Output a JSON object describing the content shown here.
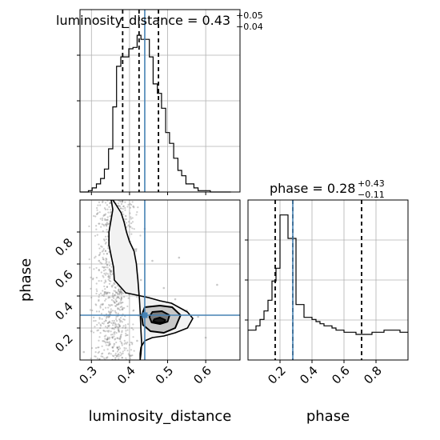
{
  "chart_data": {
    "type": "corner",
    "parameters": [
      "luminosity_distance",
      "phase"
    ],
    "ranges": {
      "luminosity_distance": [
        0.27,
        0.69
      ],
      "phase": [
        0.0,
        1.0
      ]
    },
    "truths": {
      "luminosity_distance": 0.44,
      "phase": 0.28
    },
    "grid": true,
    "panels": {
      "luminosity_distance_hist": {
        "title_prefix": "luminosity_distance = ",
        "median_text": "0.43",
        "plus_text": "+0.05",
        "minus_text": "−0.04",
        "quantiles": [
          0.382,
          0.425,
          0.476
        ],
        "bin_edges": [
          0.27,
          0.281,
          0.292,
          0.302,
          0.313,
          0.324,
          0.334,
          0.345,
          0.356,
          0.366,
          0.377,
          0.388,
          0.398,
          0.409,
          0.42,
          0.43,
          0.441,
          0.452,
          0.462,
          0.473,
          0.484,
          0.495,
          0.505,
          0.516,
          0.527,
          0.537,
          0.548,
          0.559,
          0.569,
          0.58,
          0.591,
          0.601,
          0.612,
          0.623,
          0.634,
          0.644,
          0.655,
          0.666
        ],
        "counts": [
          0,
          0,
          1,
          3,
          6,
          10,
          17,
          32,
          63,
          93,
          100,
          100,
          106,
          107,
          116,
          113,
          113,
          100,
          80,
          73,
          62,
          44,
          36,
          25,
          16,
          12,
          6,
          6,
          3,
          1,
          1,
          1,
          0,
          0,
          0,
          0,
          0
        ],
        "y_max": 135
      },
      "phase_hist": {
        "title_prefix": "phase = ",
        "median_text": "0.28",
        "plus_text": "+0.43",
        "minus_text": "−0.11",
        "quantiles": [
          0.17,
          0.28,
          0.71
        ],
        "bin_edges": [
          0.0,
          0.025,
          0.05,
          0.075,
          0.1,
          0.125,
          0.15,
          0.175,
          0.2,
          0.225,
          0.25,
          0.275,
          0.3,
          0.325,
          0.35,
          0.375,
          0.4,
          0.425,
          0.45,
          0.475,
          0.5,
          0.525,
          0.55,
          0.575,
          0.6,
          0.625,
          0.65,
          0.675,
          0.7,
          0.725,
          0.75,
          0.775,
          0.8,
          0.825,
          0.85,
          0.875,
          0.9,
          0.925,
          0.95,
          0.975,
          1.0
        ],
        "counts": [
          14,
          14,
          16,
          19,
          23,
          28,
          37,
          43,
          68,
          68,
          57,
          57,
          26,
          26,
          20,
          20,
          19,
          18,
          17,
          16,
          16,
          15,
          14,
          14,
          13,
          13,
          13,
          12,
          12,
          12,
          12,
          13,
          13,
          13,
          14,
          14,
          14,
          14,
          13,
          13
        ],
        "y_max": 75
      },
      "joint": {
        "density_scatter": [
          {
            "dist": 0.28,
            "phase": 0.05
          },
          {
            "dist": 0.3,
            "phase": 0.18
          },
          {
            "dist": 0.33,
            "phase": 0.35
          },
          {
            "dist": 0.35,
            "phase": 0.55
          },
          {
            "dist": 0.37,
            "phase": 0.72
          },
          {
            "dist": 0.39,
            "phase": 0.9
          },
          {
            "dist": 0.41,
            "phase": 0.96
          },
          {
            "dist": 0.44,
            "phase": 0.82
          },
          {
            "dist": 0.46,
            "phase": 0.62
          },
          {
            "dist": 0.49,
            "phase": 0.45
          },
          {
            "dist": 0.52,
            "phase": 0.38
          },
          {
            "dist": 0.55,
            "phase": 0.31
          },
          {
            "dist": 0.58,
            "phase": 0.27
          },
          {
            "dist": 0.6,
            "phase": 0.14
          },
          {
            "dist": 0.63,
            "phase": 0.47
          },
          {
            "dist": 0.53,
            "phase": 0.64
          },
          {
            "dist": 0.47,
            "phase": 0.22
          },
          {
            "dist": 0.42,
            "phase": 0.12
          },
          {
            "dist": 0.36,
            "phase": 0.1
          },
          {
            "dist": 0.4,
            "phase": 0.03
          },
          {
            "dist": 0.5,
            "phase": 0.3
          },
          {
            "dist": 0.56,
            "phase": 0.26
          },
          {
            "dist": 0.34,
            "phase": 0.85
          },
          {
            "dist": 0.38,
            "phase": 0.42
          },
          {
            "dist": 0.45,
            "phase": 0.34
          },
          {
            "dist": 0.48,
            "phase": 0.26
          },
          {
            "dist": 0.43,
            "phase": 0.5
          },
          {
            "dist": 0.32,
            "phase": 0.62
          },
          {
            "dist": 0.51,
            "phase": 0.19
          },
          {
            "dist": 0.4,
            "phase": 0.66
          }
        ],
        "contour_levels": [
          {
            "shade": "#f2f2f2",
            "path_x": [
              0.352,
              0.356,
              0.352,
              0.346,
              0.346,
              0.352,
              0.358,
              0.36,
              0.39,
              0.45,
              0.48,
              0.51,
              0.552,
              0.566,
              0.552,
              0.52,
              0.49,
              0.46,
              0.44,
              0.43,
              0.428,
              0.428,
              0.43,
              0.432,
              0.43,
              0.428,
              0.426,
              0.424,
              0.422,
              0.42,
              0.418,
              0.412,
              0.4,
              0.392,
              0.386,
              0.378,
              0.37,
              0.362,
              0.356,
              0.352,
              0.35,
              0.35,
              0.352
            ],
            "path_y": [
              1.0,
              0.94,
              0.88,
              0.8,
              0.72,
              0.65,
              0.58,
              0.5,
              0.42,
              0.39,
              0.37,
              0.355,
              0.3,
              0.26,
              0.2,
              0.17,
              0.15,
              0.14,
              0.12,
              0.08,
              0.04,
              0.0,
              0.04,
              0.1,
              0.18,
              0.3,
              0.38,
              0.44,
              0.5,
              0.55,
              0.6,
              0.68,
              0.74,
              0.8,
              0.86,
              0.92,
              0.95,
              0.98,
              1.0,
              1.0,
              1.0,
              1.0,
              1.0
            ]
          },
          {
            "shade": "#c8c8c8",
            "path_x": [
              0.44,
              0.48,
              0.512,
              0.534,
              0.52,
              0.49,
              0.455,
              0.435,
              0.432,
              0.44
            ],
            "path_y": [
              0.33,
              0.34,
              0.33,
              0.28,
              0.2,
              0.17,
              0.18,
              0.22,
              0.28,
              0.33
            ]
          },
          {
            "shade": "#7a7a7a",
            "path_x": [
              0.46,
              0.485,
              0.505,
              0.5,
              0.48,
              0.458,
              0.452,
              0.46
            ],
            "path_y": [
              0.3,
              0.305,
              0.28,
              0.24,
              0.225,
              0.235,
              0.27,
              0.3
            ]
          },
          {
            "shade": "#1a1a1a",
            "path_x": [
              0.465,
              0.48,
              0.494,
              0.49,
              0.475,
              0.462,
              0.465
            ],
            "path_y": [
              0.255,
              0.265,
              0.25,
              0.235,
              0.232,
              0.242,
              0.255
            ]
          }
        ]
      }
    },
    "ticks": {
      "luminosity_distance": [
        0.3,
        0.4,
        0.5,
        0.6
      ],
      "luminosity_distance_labels": [
        "0.3",
        "0.4",
        "0.5",
        "0.6"
      ],
      "phase": [
        0.2,
        0.4,
        0.6,
        0.8
      ],
      "phase_labels": [
        "0.2",
        "0.4",
        "0.6",
        "0.8"
      ]
    },
    "xlabel_left": "luminosity_distance",
    "xlabel_right": "phase",
    "ylabel": "phase"
  }
}
